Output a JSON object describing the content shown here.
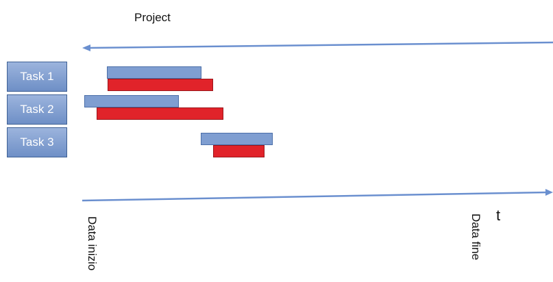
{
  "diagram": {
    "title": "Project",
    "tasks": [
      {
        "label": "Task 1"
      },
      {
        "label": "Task 2"
      },
      {
        "label": "Task 3"
      }
    ],
    "time_label": "t",
    "start_label": "Data inizio",
    "end_label": "Data fine",
    "colors": {
      "task_box": "#7f9ed1",
      "planned_bar": "#7f9ed1",
      "actual_bar": "#e1232a",
      "arrow": "#6a8fcf"
    }
  }
}
